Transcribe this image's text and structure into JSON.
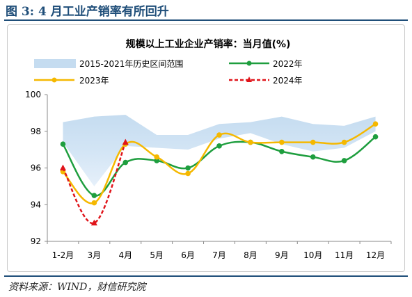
{
  "figure_label": "图 3:  4 月工业产销率有所回升",
  "source": "资料来源：WIND，财信研究院",
  "chart_data": {
    "type": "line",
    "title": "规模以上工业企业产销率：当月值(%)",
    "categories": [
      "1-2月",
      "3月",
      "4月",
      "5月",
      "6月",
      "7月",
      "8月",
      "9月",
      "10月",
      "11月",
      "12月"
    ],
    "ylim": [
      92,
      100
    ],
    "yticks": [
      "92",
      "94",
      "96",
      "98",
      "100"
    ],
    "grid": false,
    "legend_position": "top",
    "band": {
      "name": "2015-2021年历史区间范围",
      "color": "#c5dcf0",
      "upper": [
        98.5,
        98.8,
        98.9,
        97.8,
        97.8,
        98.4,
        98.5,
        98.8,
        98.4,
        98.3,
        98.8
      ],
      "lower": [
        97.4,
        95.0,
        97.2,
        97.1,
        97.0,
        97.6,
        97.9,
        97.3,
        96.9,
        97.1,
        98.0
      ]
    },
    "series": [
      {
        "name": "2022年",
        "color": "#1e9e3e",
        "style": "solid",
        "marker": "circle",
        "values": [
          97.3,
          94.5,
          96.3,
          96.4,
          96.0,
          97.2,
          97.4,
          96.9,
          96.6,
          96.4,
          97.7
        ]
      },
      {
        "name": "2023年",
        "color": "#f5b800",
        "style": "solid",
        "marker": "circle",
        "values": [
          95.8,
          94.1,
          97.3,
          96.6,
          95.7,
          97.8,
          97.4,
          97.4,
          97.4,
          97.4,
          98.4
        ]
      },
      {
        "name": "2024年",
        "color": "#e0141a",
        "style": "dashed",
        "marker": "triangle",
        "values": [
          96.0,
          93.0,
          97.4,
          null,
          null,
          null,
          null,
          null,
          null,
          null,
          null
        ]
      }
    ]
  }
}
